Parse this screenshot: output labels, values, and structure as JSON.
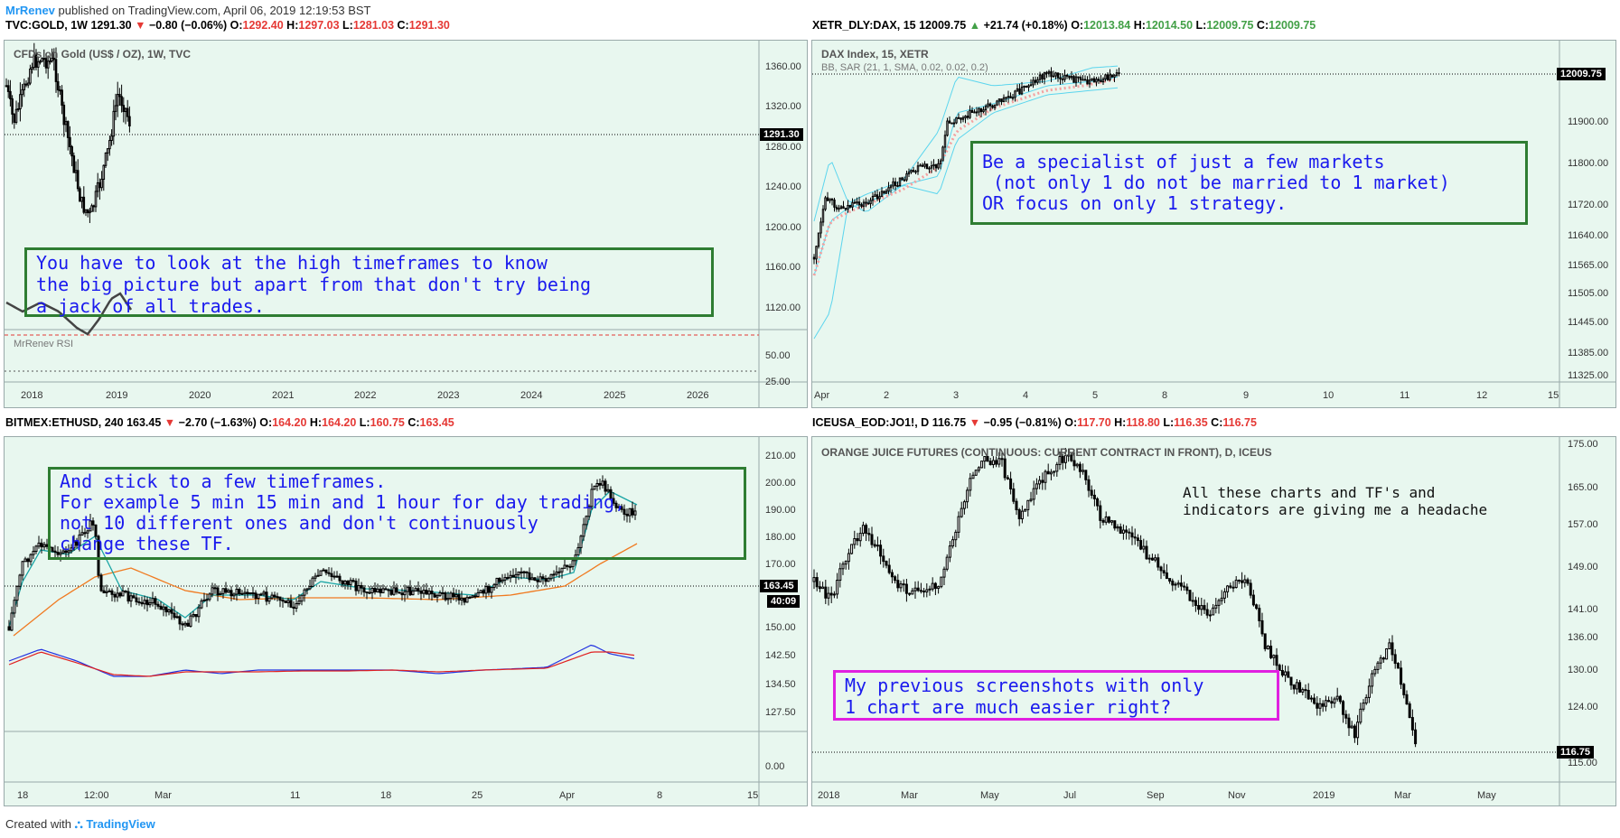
{
  "header": {
    "user": "MrRenev",
    "published": "published on TradingView.com, April 06, 2019 12:19:53 BST"
  },
  "footer": {
    "created": "Created with",
    "brand": "TradingView"
  },
  "panels": {
    "gold": {
      "ticker": "TVC:GOLD, 1W",
      "last": "1291.30",
      "change": "−0.80 (−0.06%)",
      "o": "1292.40",
      "h": "1297.03",
      "l": "1281.03",
      "c": "1291.30",
      "symbol_label": "CFDs on Gold (US$ / OZ), 1W, TVC",
      "indicator": "MrRenev RSI",
      "price_tag": "1291.30",
      "y_ticks": [
        "1360.00",
        "1320.00",
        "1280.00",
        "1240.00",
        "1200.00",
        "1160.00",
        "1120.00"
      ],
      "rsi_ticks": [
        "50.00",
        "25.00"
      ],
      "x_ticks": [
        "2018",
        "2019",
        "2020",
        "2021",
        "2022",
        "2023",
        "2024",
        "2025",
        "2026"
      ],
      "note": "You have to look at the high timeframes to know\nthe big picture but apart from that don't try being\na jack of all trades."
    },
    "dax": {
      "ticker": "XETR_DLY:DAX, 15",
      "last": "12009.75",
      "change": "+21.74 (+0.18%)",
      "o": "12013.84",
      "h": "12014.50",
      "l": "12009.75",
      "c": "12009.75",
      "symbol_label": "DAX Index, 15, XETR",
      "indicator": "BB, SAR (21, 1, SMA, 0.02, 0.02, 0.2)",
      "price_tag": "12009.75",
      "y_ticks": [
        "11900.00",
        "11800.00",
        "11720.00",
        "11640.00",
        "11565.00",
        "11505.00",
        "11445.00",
        "11385.00",
        "11325.00"
      ],
      "x_ticks": [
        "Apr",
        "2",
        "3",
        "4",
        "5",
        "8",
        "9",
        "10",
        "11",
        "12",
        "15"
      ],
      "note": "Be a specialist of just a few markets\n (not only 1 do not be married to 1 market)\nOR focus on only 1 strategy."
    },
    "eth": {
      "ticker": "BITMEX:ETHUSD, 240",
      "last": "163.45",
      "change": "−2.70 (−1.63%)",
      "o": "164.20",
      "h": "164.20",
      "l": "160.75",
      "c": "163.45",
      "price_tag": "163.45",
      "time_tag": "40:09",
      "y_ticks": [
        "210.00",
        "200.00",
        "190.00",
        "180.00",
        "170.00",
        "150.00",
        "142.50",
        "134.50",
        "127.50"
      ],
      "macd_ticks": [
        "0.00"
      ],
      "x_ticks": [
        "18",
        "12:00",
        "Mar",
        "11",
        "18",
        "25",
        "Apr",
        "8",
        "15"
      ],
      "note": "And stick to a few timeframes.\nFor example 5 min 15 min and 1 hour for day trading,\nnot 10 different ones and don't continuously\nchange these TF."
    },
    "oj": {
      "ticker": "ICEUSA_EOD:JO1!, D",
      "last": "116.75",
      "change": "−0.95 (−0.81%)",
      "o": "117.70",
      "h": "118.80",
      "l": "116.35",
      "c": "116.75",
      "symbol_label": "ORANGE JUICE FUTURES (CONTINUOUS: CURRENT CONTRACT IN FRONT), D, ICEUS",
      "price_tag": "116.75",
      "y_ticks": [
        "175.00",
        "165.00",
        "157.00",
        "149.00",
        "141.00",
        "136.00",
        "130.00",
        "124.00",
        "115.00"
      ],
      "x_ticks": [
        "2018",
        "Mar",
        "May",
        "Jul",
        "Sep",
        "Nov",
        "2019",
        "Mar",
        "May"
      ],
      "note_plain": "All these charts and TF's and\nindicators are giving me a headache",
      "note": "My previous screenshots with only\n1 chart are much easier right?"
    }
  },
  "colors": {
    "panel_bg": "#e8f7ef",
    "note_text": "#1a1aee",
    "note_border_green": "#2e7d32",
    "note_border_magenta": "#e020e0",
    "down": "#e53935",
    "up": "#43a047",
    "bb": "#5bd5ee",
    "sar": "#f4a0a0",
    "ma_fast": "#1aa5a5",
    "ma_slow": "#f07a20",
    "macd": "#2030e0",
    "signal": "#e02020"
  }
}
